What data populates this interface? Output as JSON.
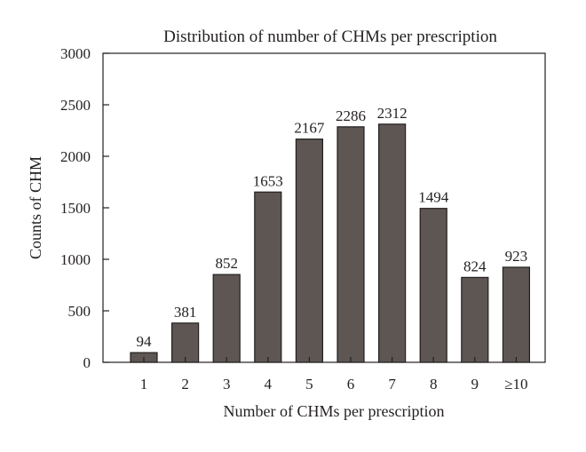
{
  "chart_data": {
    "type": "bar",
    "title": "Distribution of number of CHMs per prescription",
    "xlabel": "Number of CHMs per prescription",
    "ylabel": "Counts of CHM",
    "categories": [
      "1",
      "2",
      "3",
      "4",
      "5",
      "6",
      "7",
      "8",
      "9",
      "≥10"
    ],
    "values": [
      94,
      381,
      852,
      1653,
      2167,
      2286,
      2312,
      1494,
      824,
      923
    ],
    "data_labels": [
      "94",
      "381",
      "852",
      "1653",
      "2167",
      "2286",
      "2312",
      "1494",
      "824",
      "923"
    ],
    "yticks": [
      0,
      500,
      1000,
      1500,
      2000,
      2500,
      3000
    ],
    "ytick_labels": [
      "0",
      "500",
      "1000",
      "1500",
      "2000",
      "2500",
      "3000"
    ],
    "ylim": [
      0,
      3000
    ],
    "grid": false,
    "legend": "none",
    "bar_color": "#5d5653"
  }
}
